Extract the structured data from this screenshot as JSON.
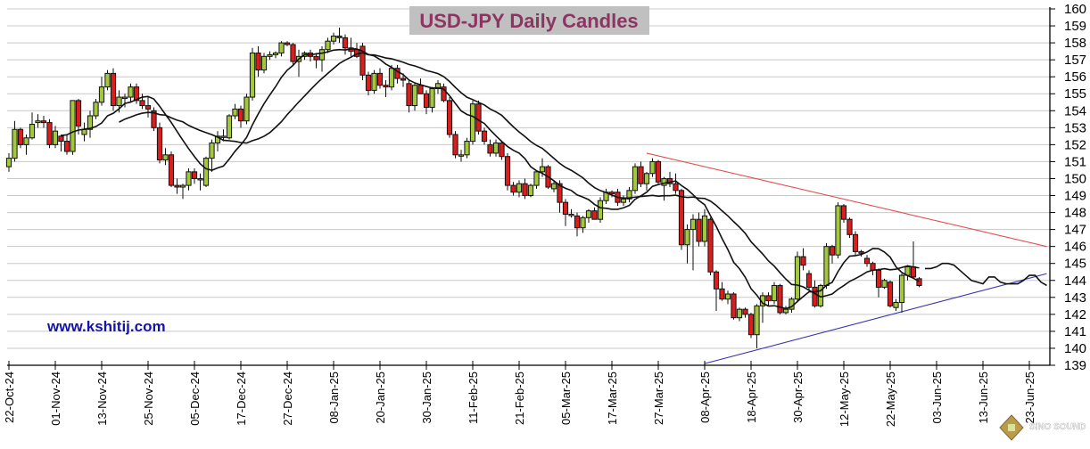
{
  "chart_data": {
    "type": "candlestick",
    "title": "USD-JPY Daily Candles",
    "website": "www.kshitij.com",
    "watermark": "SINO SOUND",
    "ylim": [
      139,
      160
    ],
    "y_ticks": [
      139,
      140,
      141,
      142,
      143,
      144,
      145,
      146,
      147,
      148,
      149,
      150,
      151,
      152,
      153,
      154,
      155,
      156,
      157,
      158,
      159,
      160
    ],
    "x_tick_every_bars": 8,
    "x_ticks": [
      "22-Oct-24",
      "01-Nov-24",
      "13-Nov-24",
      "25-Nov-24",
      "05-Dec-24",
      "17-Dec-24",
      "27-Dec-24",
      "08-Jan-25",
      "20-Jan-25",
      "30-Jan-25",
      "11-Feb-25",
      "21-Feb-25",
      "05-Mar-25",
      "17-Mar-25",
      "27-Mar-25",
      "08-Apr-25",
      "18-Apr-25",
      "30-Apr-25",
      "12-May-25",
      "22-May-25",
      "03-Jun-25",
      "13-Jun-25",
      "23-Jun-25"
    ],
    "grid": true,
    "colors": {
      "up": "#a3c83c",
      "down": "#dd1c1c",
      "title": "#8e3463",
      "title_bg": "#c0c0c0",
      "website": "#1414a8",
      "resistance": "#e05050",
      "support": "#3434b0"
    },
    "ohlc_columns": [
      "open",
      "high",
      "low",
      "close"
    ],
    "candles": [
      [
        150.7,
        151.5,
        150.4,
        151.2
      ],
      [
        151.2,
        153.4,
        151.0,
        152.9
      ],
      [
        152.9,
        153.0,
        151.8,
        152.0
      ],
      [
        152.0,
        152.6,
        151.4,
        152.4
      ],
      [
        152.4,
        153.9,
        152.3,
        153.2
      ],
      [
        153.3,
        153.8,
        153.0,
        153.4
      ],
      [
        153.4,
        153.7,
        153.0,
        153.3
      ],
      [
        153.3,
        153.5,
        151.8,
        152.0
      ],
      [
        152.0,
        153.1,
        151.8,
        152.8
      ],
      [
        152.5,
        152.6,
        151.6,
        152.2
      ],
      [
        152.2,
        152.6,
        151.4,
        151.6
      ],
      [
        151.6,
        154.6,
        151.4,
        154.6
      ],
      [
        154.6,
        154.7,
        152.6,
        153.1
      ],
      [
        152.6,
        153.3,
        152.2,
        152.9
      ],
      [
        152.9,
        154.0,
        152.4,
        153.7
      ],
      [
        153.7,
        154.7,
        153.5,
        154.5
      ],
      [
        154.5,
        156.0,
        154.3,
        155.4
      ],
      [
        155.4,
        156.4,
        155.2,
        156.2
      ],
      [
        156.2,
        156.5,
        154.0,
        154.3
      ],
      [
        154.3,
        155.2,
        153.9,
        154.8
      ],
      [
        154.8,
        155.0,
        154.2,
        154.8
      ],
      [
        154.8,
        155.6,
        154.5,
        155.4
      ],
      [
        155.4,
        155.6,
        154.4,
        154.6
      ],
      [
        154.6,
        155.0,
        154.1,
        154.3
      ],
      [
        154.3,
        154.8,
        153.6,
        154.1
      ],
      [
        154.0,
        154.2,
        152.8,
        153.0
      ],
      [
        153.0,
        153.3,
        150.9,
        151.1
      ],
      [
        151.1,
        151.8,
        150.8,
        151.4
      ],
      [
        151.4,
        151.6,
        149.5,
        149.6
      ],
      [
        149.6,
        150.0,
        149.1,
        149.5
      ],
      [
        149.5,
        149.7,
        148.8,
        149.6
      ],
      [
        149.6,
        150.6,
        149.3,
        150.4
      ],
      [
        150.4,
        150.6,
        149.7,
        150.0
      ],
      [
        150.0,
        150.3,
        149.3,
        150.0
      ],
      [
        149.6,
        151.3,
        149.5,
        151.2
      ],
      [
        151.2,
        152.3,
        150.4,
        152.1
      ],
      [
        152.1,
        152.8,
        151.6,
        152.5
      ],
      [
        152.5,
        152.9,
        152.2,
        152.5
      ],
      [
        152.4,
        153.8,
        152.3,
        153.7
      ],
      [
        153.7,
        154.4,
        153.5,
        154.1
      ],
      [
        154.1,
        154.3,
        153.0,
        153.4
      ],
      [
        153.4,
        155.0,
        153.2,
        154.8
      ],
      [
        154.8,
        157.7,
        154.6,
        157.4
      ],
      [
        157.4,
        157.8,
        156.0,
        156.4
      ],
      [
        156.4,
        157.4,
        156.2,
        157.2
      ],
      [
        157.2,
        157.5,
        157.0,
        157.3
      ],
      [
        157.3,
        157.5,
        157.1,
        157.4
      ],
      [
        157.4,
        158.1,
        157.2,
        158.0
      ],
      [
        158.0,
        158.1,
        157.8,
        157.9
      ],
      [
        157.9,
        158.0,
        156.7,
        156.9
      ],
      [
        156.9,
        157.6,
        156.0,
        157.2
      ],
      [
        157.2,
        157.5,
        157.0,
        157.4
      ],
      [
        157.4,
        157.6,
        156.9,
        157.2
      ],
      [
        157.2,
        157.4,
        156.5,
        157.0
      ],
      [
        157.0,
        157.8,
        156.3,
        157.6
      ],
      [
        157.6,
        158.3,
        157.4,
        158.1
      ],
      [
        158.1,
        158.6,
        157.9,
        158.4
      ],
      [
        158.4,
        158.9,
        158.0,
        158.3
      ],
      [
        158.3,
        158.5,
        157.3,
        157.7
      ],
      [
        157.7,
        158.3,
        157.2,
        157.5
      ],
      [
        157.6,
        158.0,
        157.1,
        157.2
      ],
      [
        157.8,
        158.0,
        155.8,
        156.1
      ],
      [
        156.1,
        156.3,
        154.9,
        155.2
      ],
      [
        155.2,
        156.4,
        155.0,
        156.2
      ],
      [
        156.2,
        156.5,
        155.3,
        155.5
      ],
      [
        155.5,
        155.8,
        154.8,
        155.4
      ],
      [
        155.4,
        156.7,
        155.2,
        156.5
      ],
      [
        156.5,
        156.7,
        155.6,
        155.9
      ],
      [
        155.9,
        156.2,
        155.4,
        155.8
      ],
      [
        155.6,
        155.8,
        153.9,
        154.3
      ],
      [
        154.3,
        155.6,
        154.0,
        155.5
      ],
      [
        155.5,
        155.9,
        155.0,
        155.0
      ],
      [
        155.0,
        155.2,
        153.8,
        154.2
      ],
      [
        154.2,
        155.4,
        153.9,
        155.3
      ],
      [
        155.3,
        155.8,
        155.0,
        155.6
      ],
      [
        155.4,
        155.6,
        154.5,
        154.6
      ],
      [
        154.6,
        154.8,
        152.4,
        152.6
      ],
      [
        152.6,
        152.8,
        151.2,
        151.4
      ],
      [
        151.4,
        151.7,
        151.0,
        151.4
      ],
      [
        151.4,
        152.4,
        151.2,
        152.2
      ],
      [
        152.2,
        154.6,
        152.0,
        154.4
      ],
      [
        154.4,
        154.6,
        152.6,
        152.8
      ],
      [
        152.8,
        153.0,
        152.0,
        152.2
      ],
      [
        152.0,
        152.3,
        151.3,
        151.5
      ],
      [
        151.5,
        152.3,
        151.3,
        152.1
      ],
      [
        152.1,
        152.2,
        151.1,
        151.3
      ],
      [
        151.3,
        151.5,
        149.3,
        149.6
      ],
      [
        149.6,
        149.8,
        149.0,
        149.2
      ],
      [
        149.2,
        149.9,
        148.9,
        149.7
      ],
      [
        149.7,
        150.0,
        148.8,
        149.0
      ],
      [
        149.0,
        149.7,
        148.9,
        149.6
      ],
      [
        149.6,
        150.5,
        149.4,
        150.4
      ],
      [
        150.4,
        151.2,
        150.1,
        150.7
      ],
      [
        150.7,
        150.8,
        149.4,
        149.5
      ],
      [
        149.4,
        149.9,
        149.2,
        149.7
      ],
      [
        149.7,
        149.9,
        148.0,
        148.6
      ],
      [
        148.6,
        148.8,
        147.2,
        147.9
      ],
      [
        147.9,
        148.2,
        147.7,
        147.9
      ],
      [
        147.8,
        148.0,
        146.6,
        147.1
      ],
      [
        147.1,
        147.8,
        146.8,
        147.7
      ],
      [
        147.7,
        148.2,
        147.4,
        148.1
      ],
      [
        148.1,
        148.3,
        147.6,
        147.6
      ],
      [
        147.6,
        148.9,
        147.4,
        148.7
      ],
      [
        148.7,
        149.4,
        148.5,
        149.2
      ],
      [
        149.2,
        149.3,
        148.9,
        149.1
      ],
      [
        149.2,
        149.4,
        148.4,
        148.6
      ],
      [
        148.6,
        149.0,
        148.4,
        148.8
      ],
      [
        148.8,
        149.5,
        148.6,
        149.3
      ],
      [
        149.3,
        150.9,
        149.1,
        150.7
      ],
      [
        150.7,
        151.0,
        149.5,
        149.7
      ],
      [
        149.7,
        150.4,
        149.3,
        150.3
      ],
      [
        150.3,
        151.2,
        150.1,
        151.0
      ],
      [
        151.0,
        151.1,
        149.6,
        149.8
      ],
      [
        149.6,
        150.1,
        148.7,
        150.0
      ],
      [
        150.0,
        150.4,
        149.5,
        149.7
      ],
      [
        149.7,
        150.3,
        149.1,
        149.3
      ],
      [
        149.3,
        149.4,
        145.8,
        146.1
      ],
      [
        146.1,
        147.3,
        145.0,
        147.0
      ],
      [
        147.0,
        147.9,
        144.6,
        147.6
      ],
      [
        147.6,
        148.0,
        146.0,
        146.3
      ],
      [
        146.3,
        148.2,
        146.0,
        147.8
      ],
      [
        147.6,
        147.7,
        144.3,
        144.5
      ],
      [
        144.5,
        144.6,
        142.2,
        143.5
      ],
      [
        143.5,
        143.9,
        142.8,
        142.9
      ],
      [
        142.9,
        143.4,
        142.6,
        143.2
      ],
      [
        143.2,
        143.3,
        141.7,
        141.8
      ],
      [
        141.8,
        142.4,
        141.6,
        142.3
      ],
      [
        142.3,
        142.4,
        141.8,
        142.0
      ],
      [
        142.0,
        142.1,
        140.6,
        140.8
      ],
      [
        140.8,
        142.6,
        140.0,
        142.5
      ],
      [
        142.5,
        143.3,
        141.5,
        143.1
      ],
      [
        143.1,
        143.3,
        142.5,
        142.8
      ],
      [
        142.8,
        143.9,
        142.6,
        143.7
      ],
      [
        143.7,
        143.8,
        142.0,
        142.1
      ],
      [
        142.1,
        142.5,
        142.0,
        142.3
      ],
      [
        142.3,
        143.0,
        142.1,
        142.9
      ],
      [
        142.9,
        145.7,
        142.7,
        145.4
      ],
      [
        145.4,
        145.9,
        144.6,
        144.9
      ],
      [
        144.4,
        144.6,
        143.4,
        143.6
      ],
      [
        143.6,
        144.0,
        142.4,
        142.5
      ],
      [
        142.5,
        143.8,
        142.4,
        143.7
      ],
      [
        143.7,
        146.2,
        143.5,
        146.0
      ],
      [
        146.0,
        146.1,
        145.0,
        145.5
      ],
      [
        145.5,
        148.6,
        145.3,
        148.4
      ],
      [
        148.4,
        148.5,
        147.4,
        147.6
      ],
      [
        147.6,
        147.7,
        146.5,
        146.7
      ],
      [
        146.7,
        146.9,
        145.5,
        145.7
      ],
      [
        145.7,
        145.8,
        145.4,
        145.6
      ],
      [
        145.3,
        145.5,
        144.8,
        145.0
      ],
      [
        145.0,
        145.1,
        144.3,
        144.6
      ],
      [
        144.6,
        144.7,
        143.0,
        143.6
      ],
      [
        143.6,
        144.1,
        143.5,
        144.0
      ],
      [
        143.9,
        144.0,
        142.4,
        142.5
      ],
      [
        142.4,
        142.9,
        142.2,
        142.7
      ],
      [
        142.7,
        144.4,
        142.1,
        144.3
      ],
      [
        144.3,
        144.9,
        144.0,
        144.8
      ],
      [
        144.8,
        146.3,
        144.1,
        144.2
      ],
      [
        144.1,
        144.2,
        143.6,
        143.7
      ]
    ],
    "moving_averages": [
      {
        "name": "fast",
        "period": 10
      },
      {
        "name": "slow",
        "period": 20
      }
    ],
    "ma_projection": [
      144.7,
      144.7,
      144.8,
      145.0,
      145.0,
      144.9,
      144.6,
      144.3,
      144.0,
      143.9,
      143.8,
      144.2,
      144.2,
      143.9,
      143.8,
      143.8,
      143.8,
      144.0,
      144.3,
      144.3,
      143.9,
      143.7
    ],
    "trendlines": [
      {
        "name": "resistance",
        "from": {
          "bar": 110,
          "price": 151.5
        },
        "to": {
          "bar": 179,
          "price": 146.0
        }
      },
      {
        "name": "support",
        "from": {
          "bar": 120,
          "price": 139.1
        },
        "to": {
          "bar": 179,
          "price": 144.4
        }
      }
    ]
  }
}
